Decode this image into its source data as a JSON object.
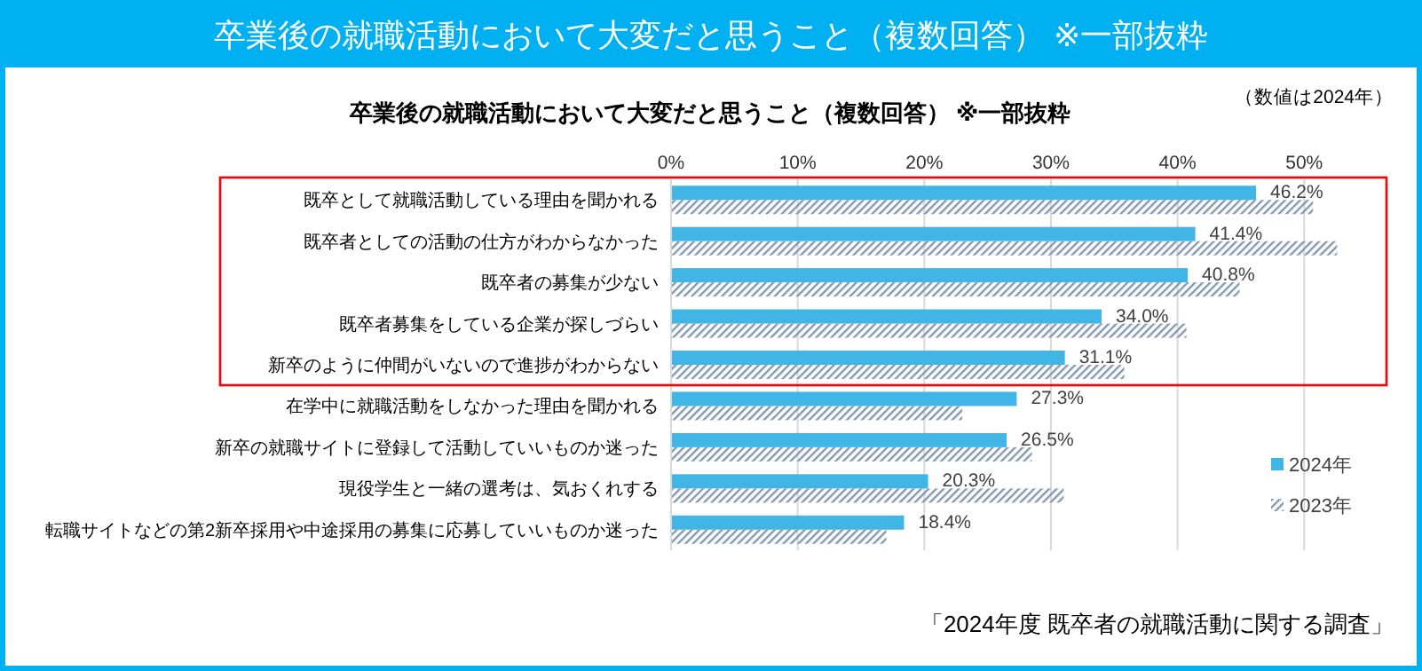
{
  "chart_data": {
    "type": "bar",
    "orientation": "horizontal",
    "title": "卒業後の就職活動において大変だと思うこと（複数回答） ※一部抜粋",
    "subtitle": "卒業後の就職活動において大変だと思うこと（複数回答） ※一部抜粋",
    "annotations": [
      "（数値は2024年）",
      "「2024年度 既卒者の就職活動に関する調査」"
    ],
    "categories": [
      "既卒として就職活動している理由を聞かれる",
      "既卒者としての活動の仕方がわからなかった",
      "既卒者の募集が少ない",
      "既卒者募集をしている企業が探しづらい",
      "新卒のように仲間がいないので進捗がわからない",
      "在学中に就職活動をしなかった理由を聞かれる",
      "新卒の就職サイトに登録して活動していいものか迷った",
      "現役学生と一緒の選考は、気おくれする",
      "転職サイトなどの第2新卒採用や中途採用の募集に応募していいものか迷った"
    ],
    "series": [
      {
        "name": "2024年",
        "color": "#41b6e6",
        "values": [
          46.2,
          41.4,
          40.8,
          34.0,
          31.1,
          27.3,
          26.5,
          20.3,
          18.4
        ],
        "value_labels": [
          "46.2%",
          "41.4%",
          "40.8%",
          "34.0%",
          "31.1%",
          "27.3%",
          "26.5%",
          "20.3%",
          "18.4%"
        ]
      },
      {
        "name": "2023年",
        "color": "#8497b0",
        "values": [
          50.7,
          52.6,
          44.9,
          40.7,
          35.8,
          23.0,
          28.5,
          31.0,
          17.0
        ]
      }
    ],
    "xlim": [
      0,
      56.5
    ],
    "xticks": [
      {
        "value": 0,
        "label": "0%"
      },
      {
        "value": 10,
        "label": "10%"
      },
      {
        "value": 20,
        "label": "20%"
      },
      {
        "value": 30,
        "label": "30%"
      },
      {
        "value": 40,
        "label": "40%"
      },
      {
        "value": 50,
        "label": "50%"
      }
    ],
    "grid": "x",
    "legend": "bottom right"
  }
}
